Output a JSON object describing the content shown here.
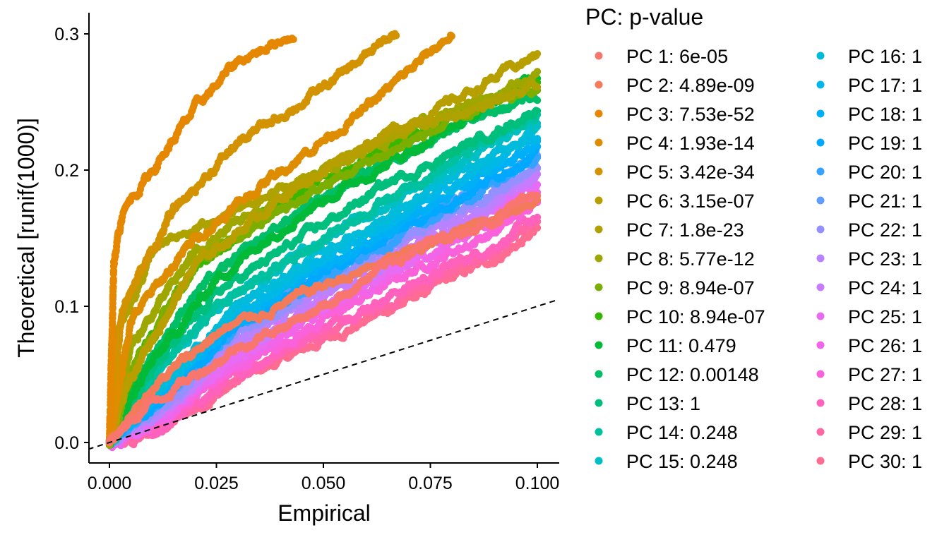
{
  "chart_data": {
    "type": "scatter",
    "title": "",
    "xlabel": "Empirical",
    "ylabel": "Theoretical [runif(1000)]",
    "xlim": [
      -0.005,
      0.105
    ],
    "ylim": [
      -0.015,
      0.315
    ],
    "x_ticks": [
      0.0,
      0.025,
      0.05,
      0.075,
      0.1
    ],
    "x_tick_labels": [
      "0.000",
      "0.025",
      "0.050",
      "0.075",
      "0.100"
    ],
    "y_ticks": [
      0.0,
      0.1,
      0.2,
      0.3
    ],
    "y_tick_labels": [
      "0.0",
      "0.1",
      "0.2",
      "0.3"
    ],
    "grid": false,
    "legend_position": "right",
    "legend_title": "PC: p-value",
    "reference_line": {
      "style": "dashed",
      "slope": 1.0,
      "intercept": 0.0,
      "note": "y = x"
    },
    "series": [
      {
        "name": "PC 1: 6e-05",
        "color": "#F8766D",
        "points": [
          [
            0,
            0
          ],
          [
            0.01,
            0.03
          ],
          [
            0.03,
            0.07
          ],
          [
            0.05,
            0.1
          ],
          [
            0.07,
            0.14
          ],
          [
            0.09,
            0.165
          ],
          [
            0.1,
            0.185
          ]
        ]
      },
      {
        "name": "PC 2: 4.89e-09",
        "color": "#F37B59",
        "points": [
          [
            0,
            0
          ],
          [
            0.01,
            0.04
          ],
          [
            0.025,
            0.08
          ],
          [
            0.05,
            0.115
          ],
          [
            0.075,
            0.145
          ],
          [
            0.1,
            0.18
          ]
        ]
      },
      {
        "name": "PC 3: 7.53e-52",
        "color": "#E58700",
        "points": [
          [
            0,
            0
          ],
          [
            0.001,
            0.13
          ],
          [
            0.003,
            0.17
          ],
          [
            0.01,
            0.2
          ],
          [
            0.02,
            0.245
          ],
          [
            0.03,
            0.28
          ],
          [
            0.043,
            0.3
          ]
        ]
      },
      {
        "name": "PC 4: 1.93e-14",
        "color": "#DE8C00",
        "points": [
          [
            0,
            0
          ],
          [
            0.005,
            0.09
          ],
          [
            0.02,
            0.15
          ],
          [
            0.04,
            0.2
          ],
          [
            0.06,
            0.245
          ],
          [
            0.08,
            0.3
          ]
        ]
      },
      {
        "name": "PC 5: 3.42e-34",
        "color": "#D39200",
        "points": [
          [
            0,
            0
          ],
          [
            0.003,
            0.1
          ],
          [
            0.015,
            0.17
          ],
          [
            0.03,
            0.22
          ],
          [
            0.05,
            0.26
          ],
          [
            0.067,
            0.3
          ]
        ]
      },
      {
        "name": "PC 6: 3.15e-07",
        "color": "#B79F00",
        "points": [
          [
            0,
            0
          ],
          [
            0.005,
            0.05
          ],
          [
            0.02,
            0.13
          ],
          [
            0.04,
            0.18
          ],
          [
            0.06,
            0.22
          ],
          [
            0.08,
            0.25
          ],
          [
            0.1,
            0.285
          ]
        ]
      },
      {
        "name": "PC 7: 1.8e-23",
        "color": "#AEA200",
        "points": [
          [
            0,
            0
          ],
          [
            0.002,
            0.08
          ],
          [
            0.01,
            0.14
          ],
          [
            0.03,
            0.17
          ],
          [
            0.05,
            0.2
          ],
          [
            0.07,
            0.23
          ],
          [
            0.1,
            0.26
          ]
        ]
      },
      {
        "name": "PC 8: 5.77e-12",
        "color": "#9DA700",
        "points": [
          [
            0,
            0
          ],
          [
            0.005,
            0.07
          ],
          [
            0.02,
            0.14
          ],
          [
            0.04,
            0.18
          ],
          [
            0.06,
            0.215
          ],
          [
            0.08,
            0.245
          ],
          [
            0.1,
            0.27
          ]
        ]
      },
      {
        "name": "PC 9: 8.94e-07",
        "color": "#7CAE00",
        "points": [
          [
            0,
            0
          ],
          [
            0.006,
            0.06
          ],
          [
            0.02,
            0.13
          ],
          [
            0.04,
            0.17
          ],
          [
            0.06,
            0.205
          ],
          [
            0.08,
            0.235
          ],
          [
            0.1,
            0.26
          ]
        ]
      },
      {
        "name": "PC 10: 8.94e-07",
        "color": "#39B600",
        "points": [
          [
            0,
            0
          ],
          [
            0.006,
            0.06
          ],
          [
            0.02,
            0.13
          ],
          [
            0.04,
            0.175
          ],
          [
            0.06,
            0.21
          ],
          [
            0.08,
            0.24
          ],
          [
            0.1,
            0.265
          ]
        ]
      },
      {
        "name": "PC 11: 0.479",
        "color": "#00BA38",
        "points": [
          [
            0,
            0
          ],
          [
            0.008,
            0.05
          ],
          [
            0.025,
            0.12
          ],
          [
            0.045,
            0.17
          ],
          [
            0.065,
            0.205
          ],
          [
            0.085,
            0.24
          ],
          [
            0.1,
            0.27
          ]
        ]
      },
      {
        "name": "PC 12: 0.00148",
        "color": "#00BE67",
        "points": [
          [
            0,
            0
          ],
          [
            0.007,
            0.05
          ],
          [
            0.02,
            0.11
          ],
          [
            0.04,
            0.16
          ],
          [
            0.06,
            0.2
          ],
          [
            0.08,
            0.23
          ],
          [
            0.1,
            0.255
          ]
        ]
      },
      {
        "name": "PC 13: 1",
        "color": "#00BF7D",
        "points": [
          [
            0,
            0
          ],
          [
            0.008,
            0.045
          ],
          [
            0.025,
            0.11
          ],
          [
            0.045,
            0.15
          ],
          [
            0.065,
            0.19
          ],
          [
            0.085,
            0.22
          ],
          [
            0.1,
            0.245
          ]
        ]
      },
      {
        "name": "PC 14: 0.248",
        "color": "#00C19F",
        "points": [
          [
            0,
            0
          ],
          [
            0.008,
            0.04
          ],
          [
            0.025,
            0.1
          ],
          [
            0.045,
            0.14
          ],
          [
            0.065,
            0.18
          ],
          [
            0.085,
            0.215
          ],
          [
            0.1,
            0.24
          ]
        ]
      },
      {
        "name": "PC 15: 0.248",
        "color": "#00BFC4",
        "points": [
          [
            0,
            0
          ],
          [
            0.008,
            0.04
          ],
          [
            0.025,
            0.1
          ],
          [
            0.045,
            0.14
          ],
          [
            0.065,
            0.175
          ],
          [
            0.085,
            0.21
          ],
          [
            0.1,
            0.235
          ]
        ]
      },
      {
        "name": "PC 16: 1",
        "color": "#00BBDA",
        "points": [
          [
            0,
            0
          ],
          [
            0.01,
            0.035
          ],
          [
            0.03,
            0.1
          ],
          [
            0.05,
            0.14
          ],
          [
            0.07,
            0.175
          ],
          [
            0.09,
            0.21
          ],
          [
            0.1,
            0.23
          ]
        ]
      },
      {
        "name": "PC 17: 1",
        "color": "#00B8E7",
        "points": [
          [
            0,
            0
          ],
          [
            0.01,
            0.035
          ],
          [
            0.03,
            0.095
          ],
          [
            0.05,
            0.135
          ],
          [
            0.07,
            0.17
          ],
          [
            0.09,
            0.205
          ],
          [
            0.1,
            0.225
          ]
        ]
      },
      {
        "name": "PC 18: 1",
        "color": "#00B0F6",
        "points": [
          [
            0,
            0
          ],
          [
            0.01,
            0.03
          ],
          [
            0.03,
            0.09
          ],
          [
            0.05,
            0.13
          ],
          [
            0.07,
            0.165
          ],
          [
            0.09,
            0.2
          ],
          [
            0.1,
            0.22
          ]
        ]
      },
      {
        "name": "PC 19: 1",
        "color": "#00A9FF",
        "points": [
          [
            0,
            0
          ],
          [
            0.012,
            0.03
          ],
          [
            0.03,
            0.085
          ],
          [
            0.05,
            0.125
          ],
          [
            0.07,
            0.16
          ],
          [
            0.09,
            0.195
          ],
          [
            0.1,
            0.215
          ]
        ]
      },
      {
        "name": "PC 20: 1",
        "color": "#35A2FF",
        "points": [
          [
            0,
            0
          ],
          [
            0.012,
            0.03
          ],
          [
            0.03,
            0.085
          ],
          [
            0.05,
            0.12
          ],
          [
            0.07,
            0.155
          ],
          [
            0.09,
            0.19
          ],
          [
            0.1,
            0.21
          ]
        ]
      },
      {
        "name": "PC 21: 1",
        "color": "#619CFF",
        "points": [
          [
            0,
            0
          ],
          [
            0.012,
            0.03
          ],
          [
            0.03,
            0.09
          ],
          [
            0.05,
            0.125
          ],
          [
            0.07,
            0.16
          ],
          [
            0.09,
            0.195
          ],
          [
            0.1,
            0.21
          ]
        ]
      },
      {
        "name": "PC 22: 1",
        "color": "#9590FF",
        "points": [
          [
            0,
            0
          ],
          [
            0.013,
            0.025
          ],
          [
            0.03,
            0.08
          ],
          [
            0.05,
            0.115
          ],
          [
            0.07,
            0.15
          ],
          [
            0.09,
            0.185
          ],
          [
            0.1,
            0.205
          ]
        ]
      },
      {
        "name": "PC 23: 1",
        "color": "#B983FF",
        "points": [
          [
            0,
            0
          ],
          [
            0.013,
            0.025
          ],
          [
            0.03,
            0.075
          ],
          [
            0.05,
            0.11
          ],
          [
            0.07,
            0.145
          ],
          [
            0.09,
            0.18
          ],
          [
            0.1,
            0.2
          ]
        ]
      },
      {
        "name": "PC 24: 1",
        "color": "#C77CFF",
        "points": [
          [
            0,
            0
          ],
          [
            0.013,
            0.025
          ],
          [
            0.03,
            0.07
          ],
          [
            0.05,
            0.105
          ],
          [
            0.07,
            0.14
          ],
          [
            0.09,
            0.175
          ],
          [
            0.1,
            0.195
          ]
        ]
      },
      {
        "name": "PC 25: 1",
        "color": "#E76BF3",
        "points": [
          [
            0,
            0
          ],
          [
            0.013,
            0.02
          ],
          [
            0.03,
            0.065
          ],
          [
            0.05,
            0.1
          ],
          [
            0.07,
            0.135
          ],
          [
            0.09,
            0.17
          ],
          [
            0.1,
            0.19
          ]
        ]
      },
      {
        "name": "PC 26: 1",
        "color": "#F166E8",
        "points": [
          [
            0,
            0
          ],
          [
            0.013,
            0.02
          ],
          [
            0.03,
            0.06
          ],
          [
            0.05,
            0.095
          ],
          [
            0.07,
            0.13
          ],
          [
            0.09,
            0.165
          ],
          [
            0.1,
            0.185
          ]
        ]
      },
      {
        "name": "PC 27: 1",
        "color": "#FA62DB",
        "points": [
          [
            0,
            0
          ],
          [
            0.013,
            0.02
          ],
          [
            0.03,
            0.055
          ],
          [
            0.05,
            0.09
          ],
          [
            0.07,
            0.125
          ],
          [
            0.09,
            0.155
          ],
          [
            0.1,
            0.175
          ]
        ]
      },
      {
        "name": "PC 28: 1",
        "color": "#FF62BC",
        "points": [
          [
            0,
            0
          ],
          [
            0.01,
            0.005
          ],
          [
            0.03,
            0.05
          ],
          [
            0.05,
            0.085
          ],
          [
            0.07,
            0.115
          ],
          [
            0.09,
            0.145
          ],
          [
            0.1,
            0.165
          ]
        ]
      },
      {
        "name": "PC 29: 1",
        "color": "#FF67A4",
        "points": [
          [
            0,
            0
          ],
          [
            0.01,
            0.005
          ],
          [
            0.03,
            0.05
          ],
          [
            0.05,
            0.08
          ],
          [
            0.07,
            0.11
          ],
          [
            0.09,
            0.14
          ],
          [
            0.1,
            0.16
          ]
        ]
      },
      {
        "name": "PC 30: 1",
        "color": "#FF6C91",
        "points": [
          [
            0,
            0
          ],
          [
            0.01,
            0.005
          ],
          [
            0.03,
            0.045
          ],
          [
            0.05,
            0.075
          ],
          [
            0.07,
            0.105
          ],
          [
            0.09,
            0.135
          ],
          [
            0.1,
            0.155
          ]
        ]
      }
    ]
  }
}
